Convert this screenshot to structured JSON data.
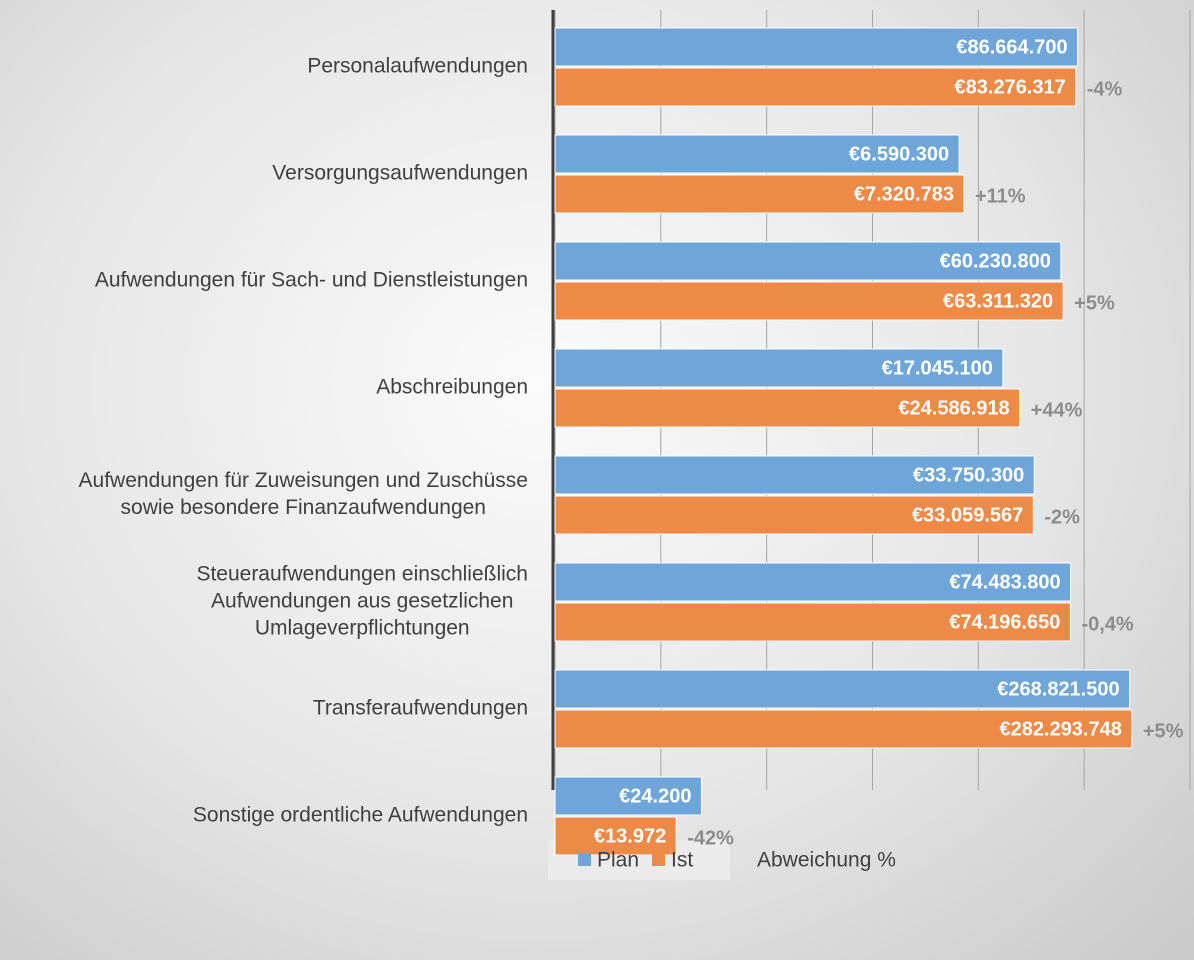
{
  "chart_data": {
    "type": "bar",
    "orientation": "horizontal",
    "log_x": true,
    "categories": [
      "Personalaufwendungen",
      "Versorgungsaufwendungen",
      "Aufwendungen für Sach- und Dienstleistungen",
      "Abschreibungen",
      "Aufwendungen für Zuweisungen und Zuschüsse\nsowie besondere Finanzaufwendungen",
      "Steueraufwendungen einschließlich\nAufwendungen aus gesetzlichen\nUmlageverpflichtungen",
      "Transferaufwendungen",
      "Sonstige ordentliche Aufwendungen"
    ],
    "series": [
      {
        "name": "Plan",
        "color": "#6fa6da",
        "values": [
          86664700,
          6590300,
          60230800,
          17045100,
          33750300,
          74483800,
          268821500,
          24200
        ],
        "value_labels": [
          "€86.664.700",
          "€6.590.300",
          "€60.230.800",
          "€17.045.100",
          "€33.750.300",
          "€74.483.800",
          "€268.821.500",
          "€24.200"
        ]
      },
      {
        "name": "Ist",
        "color": "#ed8a48",
        "values": [
          83276317,
          7320783,
          63311320,
          24586918,
          33059567,
          74196650,
          282293748,
          13972
        ],
        "value_labels": [
          "€83.276.317",
          "€7.320.783",
          "€63.311.320",
          "€24.586.918",
          "€33.059.567",
          "€74.196.650",
          "€282.293.748",
          "€13.972"
        ]
      },
      {
        "name": "Abweichung %",
        "color": "#8c8c8c",
        "values": [
          -4,
          11,
          5,
          44,
          -2,
          -0.4,
          5,
          -42
        ],
        "value_labels": [
          "-4%",
          "+11%",
          "+5%",
          "+44%",
          "-2%",
          "-0,4%",
          "+5%",
          "-42%"
        ]
      }
    ],
    "xlim": [
      1000,
      1000000000
    ],
    "xticks": [
      1000,
      10000,
      100000,
      1000000,
      10000000,
      100000000,
      1000000000
    ],
    "grid": true,
    "legend": "bottom"
  }
}
